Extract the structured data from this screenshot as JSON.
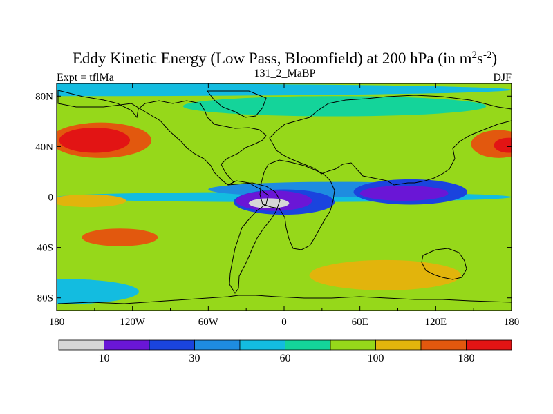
{
  "chart_data": {
    "type": "heatmap",
    "title": "Eddy Kinetic Energy (Low Pass, Bloomfield) at 200 hPa (in m",
    "title_unit_sup1": "2",
    "title_unit_mid": "s",
    "title_unit_sup2": "-2",
    "title_end": ")",
    "left_label": "Expt = tflMa",
    "center_label": "131_2_MaBP",
    "right_label": "DJF",
    "x_range": [
      -180,
      180
    ],
    "y_range": [
      -90,
      90
    ],
    "x_ticks": [
      {
        "value": -180,
        "label": "180"
      },
      {
        "value": -120,
        "label": "120W"
      },
      {
        "value": -60,
        "label": "60W"
      },
      {
        "value": 0,
        "label": "0"
      },
      {
        "value": 60,
        "label": "60E"
      },
      {
        "value": 120,
        "label": "120E"
      },
      {
        "value": 180,
        "label": "180"
      }
    ],
    "y_ticks": [
      {
        "value": 80,
        "label": "80N"
      },
      {
        "value": 40,
        "label": "40N"
      },
      {
        "value": 0,
        "label": "0"
      },
      {
        "value": -40,
        "label": "40S"
      },
      {
        "value": -80,
        "label": "80S"
      }
    ],
    "colorbar": {
      "colors": [
        "#d6d6d6",
        "#6a16d6",
        "#1a44de",
        "#1e8ce0",
        "#13bce0",
        "#14d49a",
        "#96d81a",
        "#e2b40c",
        "#e2580e",
        "#e21414"
      ],
      "labels": [
        {
          "boundary": 1,
          "text": "10"
        },
        {
          "boundary": 3,
          "text": "30"
        },
        {
          "boundary": 5,
          "text": "60"
        },
        {
          "boundary": 7,
          "text": "100"
        },
        {
          "boundary": 9,
          "text": "180"
        }
      ]
    },
    "field": {
      "background_level": 6,
      "description_note": "approximate contour regions as value levels at lon/lat centers",
      "features": [
        {
          "lon": 0,
          "lat": 0,
          "rx": 180,
          "ry": 4,
          "level": 4
        },
        {
          "lon": 40,
          "lat": 6,
          "rx": 100,
          "ry": 6,
          "level": 3
        },
        {
          "lon": 100,
          "lat": 4,
          "rx": 45,
          "ry": 10,
          "level": 2
        },
        {
          "lon": 95,
          "lat": 3,
          "rx": 35,
          "ry": 6,
          "level": 1
        },
        {
          "lon": 0,
          "lat": -4,
          "rx": 40,
          "ry": 10,
          "level": 2
        },
        {
          "lon": -8,
          "lat": -3,
          "rx": 30,
          "ry": 8,
          "level": 1
        },
        {
          "lon": -12,
          "lat": -5,
          "rx": 16,
          "ry": 4,
          "level": 0
        },
        {
          "lon": -155,
          "lat": -3,
          "rx": 30,
          "ry": 5,
          "level": 7
        },
        {
          "lon": -145,
          "lat": 45,
          "rx": 40,
          "ry": 14,
          "level": 8
        },
        {
          "lon": -150,
          "lat": 45,
          "rx": 28,
          "ry": 10,
          "level": 9
        },
        {
          "lon": 170,
          "lat": 42,
          "rx": 22,
          "ry": 11,
          "level": 8
        },
        {
          "lon": 178,
          "lat": 41,
          "rx": 12,
          "ry": 6,
          "level": 9
        },
        {
          "lon": -130,
          "lat": -32,
          "rx": 30,
          "ry": 7,
          "level": 8
        },
        {
          "lon": -150,
          "lat": 70,
          "rx": 30,
          "ry": 8,
          "level": 6
        },
        {
          "lon": 40,
          "lat": 72,
          "rx": 120,
          "ry": 8,
          "level": 5
        },
        {
          "lon": 80,
          "lat": -62,
          "rx": 60,
          "ry": 12,
          "level": 7
        },
        {
          "lon": -175,
          "lat": -75,
          "rx": 60,
          "ry": 10,
          "level": 4
        },
        {
          "lon": -180,
          "lat": 85,
          "rx": 360,
          "ry": 5,
          "level": 4
        }
      ]
    }
  }
}
